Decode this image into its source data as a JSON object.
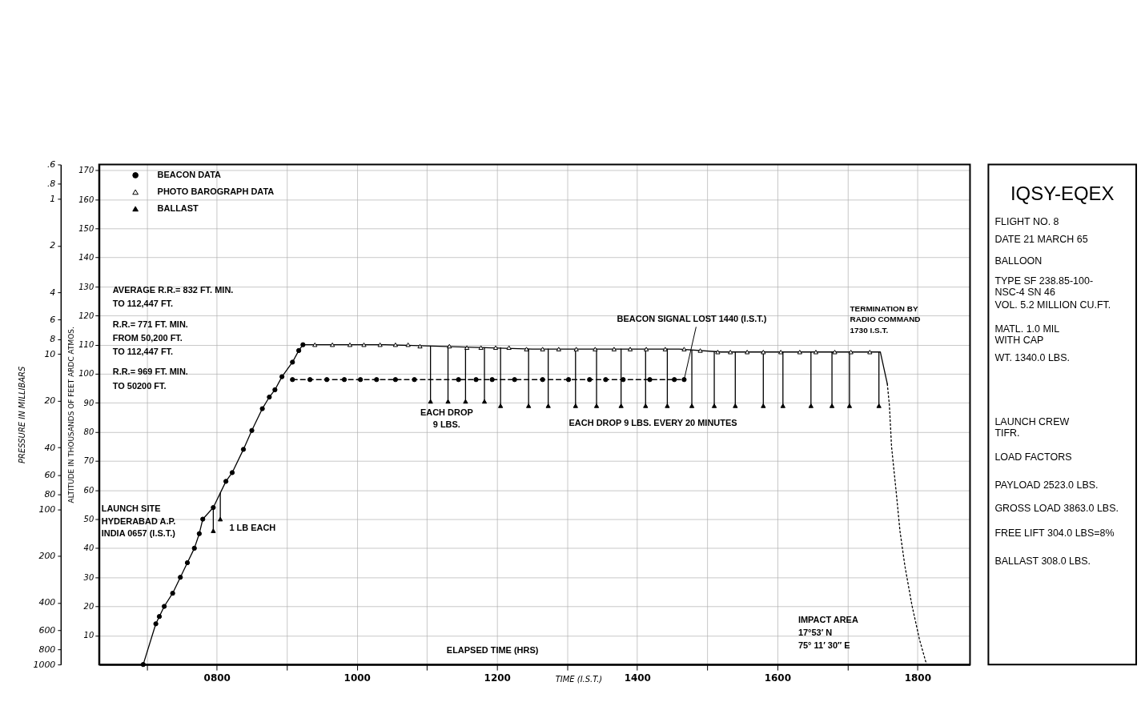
{
  "chart_data": [
    {
      "type": "line",
      "xlabel": "TIME (I.S.T.)",
      "ylabel": "ALTITUDE IN THOUSANDS OF FEET ARDC ATMOS.",
      "y2label": "PRESSURE IN MILLIBARS",
      "xlim": [
        632,
        1875
      ],
      "xticks": [
        {
          "value": 700,
          "label": null
        },
        {
          "value": 800,
          "label": "0800"
        },
        {
          "value": 900,
          "label": null
        },
        1000,
        {
          "value": 1100,
          "label": null
        },
        1200,
        {
          "value": 1300,
          "label": null
        },
        1400,
        {
          "value": 1500,
          "label": null
        },
        1600,
        {
          "value": 1700,
          "label": null
        },
        1800
      ],
      "ylim": [
        0,
        172
      ],
      "yticks": [
        10,
        20,
        30,
        40,
        50,
        60,
        70,
        80,
        90,
        100,
        110,
        120,
        130,
        140,
        150,
        160,
        170
      ],
      "y2lim": [
        1000,
        0.6
      ],
      "y2ticks": [
        {
          "value": 0.6,
          "label": ".6"
        },
        {
          "value": 0.8,
          "label": ".8"
        },
        1,
        2,
        4,
        6,
        8,
        10,
        20,
        40,
        60,
        80,
        100,
        200,
        400,
        600,
        800,
        1000
      ],
      "log": "y2",
      "grid": true,
      "legend": "top left",
      "series": [
        {
          "name": "BEACON DATA",
          "type": "line",
          "color": "#000000",
          "marker": "circle",
          "line_style": "solid",
          "x": [
            695,
            713,
            718,
            725,
            737,
            748,
            758,
            768,
            775,
            780,
            795,
            813,
            822,
            838,
            850,
            865,
            875,
            883,
            893,
            908,
            917,
            923
          ],
          "values": [
            0,
            14,
            16.5,
            20,
            24.5,
            30,
            35,
            40,
            45,
            50,
            54,
            63,
            66,
            74,
            80.5,
            88,
            92,
            94.5,
            99,
            104,
            108,
            110
          ]
        },
        {
          "type": "line",
          "color": "#000000",
          "marker": "none",
          "line_style": "solid",
          "x": [
            923,
            1040,
            1250,
            1460,
            1520,
            1747,
            1757
          ],
          "values": [
            110,
            110,
            108.5,
            108.5,
            107.5,
            107.5,
            96.5
          ]
        },
        {
          "name": "PHOTO BAROGRAPH DATA",
          "type": "scatter",
          "color": "#ffffff",
          "marker": "triangle",
          "x": [
            940,
            965,
            990,
            1010,
            1033,
            1055,
            1073,
            1090,
            1132,
            1157,
            1177,
            1198,
            1217,
            1242,
            1265,
            1288,
            1313,
            1340,
            1367,
            1390,
            1413,
            1440,
            1467,
            1490,
            1515,
            1533,
            1557,
            1580,
            1605,
            1632,
            1655,
            1682,
            1705,
            1732
          ],
          "values": [
            110,
            110,
            110,
            110,
            110,
            110,
            110,
            109.5,
            109.5,
            109,
            109,
            109,
            109,
            108.5,
            108.5,
            108.5,
            108.5,
            108.5,
            108.5,
            108.5,
            108.5,
            108.5,
            108.5,
            108,
            107.5,
            107.5,
            107.5,
            107.5,
            107.5,
            107.5,
            107.5,
            107.5,
            107.5,
            107.5
          ]
        },
        {
          "type": "line",
          "color": "#000000",
          "marker": "circle",
          "line_style": "dashed",
          "x": [
            908,
            933,
            957,
            982,
            1005,
            1028,
            1055,
            1082,
            1145,
            1170,
            1193,
            1225,
            1265,
            1302,
            1332,
            1355,
            1380,
            1418,
            1453,
            1467
          ],
          "values": [
            98,
            98,
            98,
            98,
            98,
            98,
            98,
            98,
            98,
            98,
            98,
            98,
            98,
            98,
            98,
            98,
            98,
            98,
            98,
            98
          ]
        },
        {
          "name": "BALLAST",
          "type": "scatter",
          "color": "#000000",
          "marker": "triangle",
          "x": [
            795,
            805,
            1105,
            1130,
            1155,
            1182,
            1205,
            1245,
            1273,
            1312,
            1342,
            1377,
            1412,
            1443,
            1478,
            1510,
            1540,
            1580,
            1608,
            1648,
            1678,
            1703,
            1745
          ],
          "values": [
            46,
            50,
            90.5,
            90.5,
            90.5,
            90.5,
            89,
            89,
            89,
            89,
            89,
            89,
            89,
            89,
            89,
            89,
            89,
            89,
            89,
            89,
            89,
            89,
            89
          ]
        },
        {
          "type": "line",
          "color": "#000000",
          "marker": "none",
          "line_style": "solid",
          "x": [
            795,
            795,
            null,
            805,
            805,
            null,
            1105,
            1105,
            null,
            1130,
            1130,
            null,
            1155,
            1155,
            null,
            1182,
            1182,
            null,
            1205,
            1205,
            null,
            1245,
            1245,
            null,
            1273,
            1273,
            null,
            1312,
            1312,
            null,
            1342,
            1342,
            null,
            1377,
            1377,
            null,
            1412,
            1412,
            null,
            1443,
            1443,
            null,
            1478,
            1478,
            null,
            1510,
            1510,
            null,
            1540,
            1540,
            null,
            1580,
            1580,
            null,
            1608,
            1608,
            null,
            1648,
            1648,
            null,
            1678,
            1678,
            null,
            1703,
            1703,
            null,
            1745,
            1745
          ],
          "values": [
            54,
            46,
            null,
            59,
            50,
            null,
            109.5,
            90.5,
            null,
            109.5,
            90.5,
            null,
            109,
            90.5,
            null,
            109,
            90.5,
            null,
            109,
            89,
            null,
            108.5,
            89,
            null,
            108.5,
            89,
            null,
            108.5,
            89,
            null,
            108.5,
            89,
            null,
            108.5,
            89,
            null,
            108.5,
            89,
            null,
            108.5,
            89,
            null,
            108,
            89,
            null,
            107.5,
            89,
            null,
            107.5,
            89,
            null,
            107.5,
            89,
            null,
            107.5,
            89,
            null,
            107.5,
            89,
            null,
            107.5,
            89,
            null,
            107.5,
            89,
            null,
            107.5,
            89
          ]
        },
        {
          "type": "line",
          "color": "#000000",
          "marker": "none",
          "line_style": "dotted",
          "x": [
            1757,
            1760,
            1763,
            1770,
            1775,
            1782,
            1792,
            1803,
            1813
          ],
          "values": [
            96.5,
            89,
            75,
            58.5,
            46,
            34,
            20.5,
            8.5,
            0
          ]
        }
      ],
      "annotations": [
        "AVERAGE R.R.= 832 FT. MIN.\nTO 112,447 FT.",
        "R.R.= 771 FT. MIN.\nFROM 50,200 FT.\nTO 112,447 FT.",
        "R.R.= 969 FT. MIN.\nTO 50200 FT.",
        "LAUNCH SITE\nHYDERABAD A.P.\nINDIA 0657 (I.S.T.)",
        "1 LB EACH",
        "EACH DROP\n9 LBS.",
        "EACH DROP 9 LBS. EVERY 20 MINUTES",
        {
          "text": "BEACON SIGNAL LOST 1440 (I.S.T.)",
          "x": 1467,
          "y": 98
        },
        {
          "text": "TERMINATION BY\nRADIO COMMAND\n1730 I.S.T.",
          "x": 1747,
          "y": 107.5
        },
        "IMPACT AREA\n17°53′ N\n75° 11′ 30″ E",
        "ELAPSED TIME (HRS)"
      ]
    },
    {
      "type": "other",
      "title": "IQSY-EQEX",
      "annotations": [
        "FLIGHT NO. 8",
        "DATE 21 MARCH 65",
        "BALLOON",
        "TYPE SF 238.85-100-\n         NSC-4 SN 46",
        "VOL. 5.2 MILLION CU.FT.",
        "MATL. 1.0 MIL\n            WITH CAP",
        "WT. 1340.0 LBS.",
        "LAUNCH CREW\n   TIFR.",
        "LOAD FACTORS",
        "PAYLOAD 2523.0 LBS.",
        "GROSS LOAD 3863.0 LBS.",
        "FREE LIFT 304.0 LBS=8%",
        "BALLAST 308.0 LBS."
      ]
    }
  ]
}
